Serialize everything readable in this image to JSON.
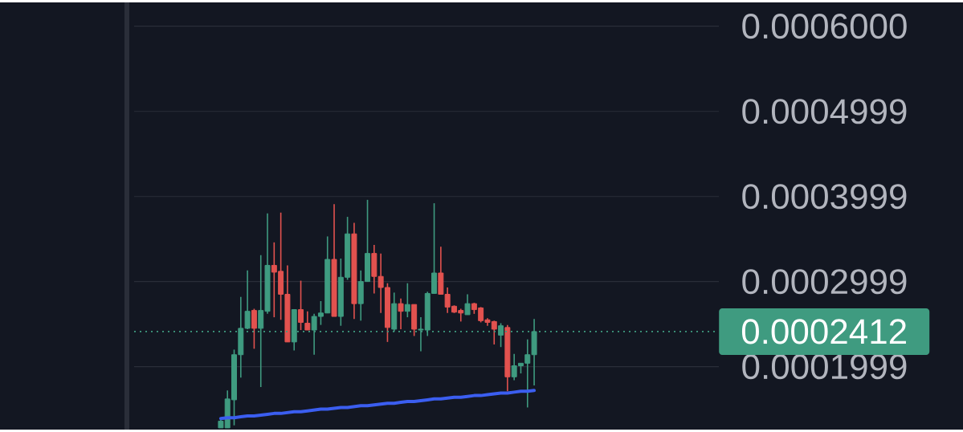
{
  "chart_data": {
    "type": "candlestick",
    "categories": [
      null,
      null,
      null,
      null,
      null,
      null,
      null,
      null,
      null,
      null,
      null,
      null,
      null,
      null,
      null,
      null,
      null,
      null,
      null,
      null,
      null,
      null,
      null,
      null,
      null,
      null,
      null,
      null,
      null,
      null,
      null,
      null,
      null,
      null,
      null,
      null,
      null,
      null,
      null,
      null,
      null,
      null,
      null,
      null,
      null,
      null,
      null,
      null
    ],
    "ohlc": [
      [
        0.000128,
        0.00014,
        0.000128,
        0.000136
      ],
      [
        0.000128,
        0.000172,
        0.000128,
        0.000162
      ],
      [
        0.000161,
        0.00022,
        0.000131,
        0.000214
      ],
      [
        0.000214,
        0.000282,
        0.000187,
        0.000245
      ],
      [
        0.000245,
        0.000313,
        0.000244,
        0.000265
      ],
      [
        0.000266,
        0.000268,
        0.000221,
        0.000245
      ],
      [
        0.000245,
        0.000331,
        0.000176,
        0.000266
      ],
      [
        0.000265,
        0.00038,
        0.000262,
        0.000319
      ],
      [
        0.000319,
        0.000346,
        0.000258,
        0.000311
      ],
      [
        0.000312,
        0.000381,
        0.000255,
        0.000285
      ],
      [
        0.000285,
        0.000319,
        0.000229,
        0.000229
      ],
      [
        0.000229,
        0.000267,
        0.000219,
        0.000267
      ],
      [
        0.000267,
        0.000301,
        0.000243,
        0.000252
      ],
      [
        0.000251,
        0.000265,
        0.000243,
        0.000243
      ],
      [
        0.000243,
        0.000262,
        0.000214,
        0.000259
      ],
      [
        0.000259,
        0.000277,
        0.000249,
        0.000263
      ],
      [
        0.000263,
        0.000353,
        0.000263,
        0.000326
      ],
      [
        0.000326,
        0.000391,
        0.000259,
        0.000259
      ],
      [
        0.000259,
        0.000327,
        0.000248,
        0.000305
      ],
      [
        0.000305,
        0.000376,
        0.000302,
        0.000356
      ],
      [
        0.000356,
        0.000369,
        0.000256,
        0.000274
      ],
      [
        0.000274,
        0.000313,
        0.000254,
        0.0003
      ],
      [
        0.0003,
        0.000396,
        0.0003,
        0.000333
      ],
      [
        0.000333,
        0.000343,
        0.000286,
        0.000306
      ],
      [
        0.000306,
        0.000333,
        0.000263,
        0.000293
      ],
      [
        0.000293,
        0.000298,
        0.000229,
        0.000246
      ],
      [
        0.000244,
        0.000287,
        0.000241,
        0.000274
      ],
      [
        0.000274,
        0.00028,
        0.000244,
        0.000265
      ],
      [
        0.000265,
        0.000298,
        0.000258,
        0.000273
      ],
      [
        0.000273,
        0.000273,
        0.000236,
        0.000244
      ],
      [
        0.000243,
        0.000258,
        0.000218,
        0.000244
      ],
      [
        0.000243,
        0.000288,
        0.000236,
        0.000286
      ],
      [
        0.000286,
        0.000392,
        0.000286,
        0.00031
      ],
      [
        0.00031,
        0.000341,
        0.000285,
        0.000285
      ],
      [
        0.000285,
        0.000293,
        0.000263,
        0.00027
      ],
      [
        0.000271,
        0.000272,
        0.000263,
        0.000264
      ],
      [
        0.000266,
        0.000268,
        0.000253,
        0.000263
      ],
      [
        0.000261,
        0.000285,
        0.000261,
        0.000274
      ],
      [
        0.000274,
        0.000275,
        0.000262,
        0.000267
      ],
      [
        0.000269,
        0.00027,
        0.000252,
        0.000254
      ],
      [
        0.000255,
        0.000257,
        0.000248,
        0.000252
      ],
      [
        0.000253,
        0.000254,
        0.000226,
        0.000244
      ],
      [
        0.000237,
        0.000251,
        0.000223,
        0.000248
      ],
      [
        0.000246,
        0.000249,
        0.000171,
        0.000188
      ],
      [
        0.000188,
        0.000215,
        0.000184,
        0.000201
      ],
      [
        0.000201,
        0.000204,
        0.000192,
        0.000204
      ],
      [
        0.000204,
        0.000232,
        0.000152,
        0.000214
      ],
      [
        0.000214,
        0.000256,
        0.000178,
        0.0002412
      ]
    ],
    "colors": [
      "#3f9b80",
      "#3f9b80",
      "#3f9b80",
      "#3f9b80",
      "#3f9b80",
      "#e2524f",
      "#3f9b80",
      "#3f9b80",
      "#e2524f",
      "#e2524f",
      "#e2524f",
      "#3f9b80",
      "#e2524f",
      "#e2524f",
      "#3f9b80",
      "#3f9b80",
      "#3f9b80",
      "#e2524f",
      "#3f9b80",
      "#3f9b80",
      "#e2524f",
      "#3f9b80",
      "#3f9b80",
      "#e2524f",
      "#e2524f",
      "#e2524f",
      "#3f9b80",
      "#e2524f",
      "#3f9b80",
      "#e2524f",
      "#3f9b80",
      "#3f9b80",
      "#3f9b80",
      "#e2524f",
      "#e2524f",
      "#e2524f",
      "#e2524f",
      "#3f9b80",
      "#e2524f",
      "#e2524f",
      "#e2524f",
      "#e2524f",
      "#3f9b80",
      "#e2524f",
      "#3f9b80",
      "#3f9b80",
      "#3f9b80",
      "#3f9b80"
    ],
    "series": [
      {
        "type": "line",
        "color": "#3b5ef0",
        "values": [
          0.000139,
          0.00014,
          0.00014,
          0.000141,
          0.000142,
          0.000142,
          0.000143,
          0.000144,
          0.000145,
          0.000145,
          0.000146,
          0.000147,
          0.000147,
          0.000148,
          0.000149,
          0.00015,
          0.00015,
          0.000151,
          0.000152,
          0.000152,
          0.000153,
          0.000154,
          0.000154,
          0.000155,
          0.000156,
          0.000157,
          0.000157,
          0.000158,
          0.000159,
          0.000159,
          0.00016,
          0.000161,
          0.000162,
          0.000162,
          0.000163,
          0.000164,
          0.000164,
          0.000165,
          0.000166,
          0.000166,
          0.000167,
          0.000168,
          0.000169,
          0.000169,
          0.00017,
          0.000171,
          0.000171,
          0.000172
        ]
      }
    ],
    "ylim": [
      0.000126,
      0.000628
    ],
    "yticks": [
      0.0001999,
      0.0002999,
      0.0003999,
      0.0004999,
      {
        "value": 0.0006,
        "label": "0.0006000"
      }
    ],
    "ref_lines": [
      {
        "axis": "y",
        "value": 0.0002412,
        "label": "0.0002412",
        "color": "#3f9b80",
        "line_style": "dotted"
      }
    ],
    "grid": "y"
  }
}
